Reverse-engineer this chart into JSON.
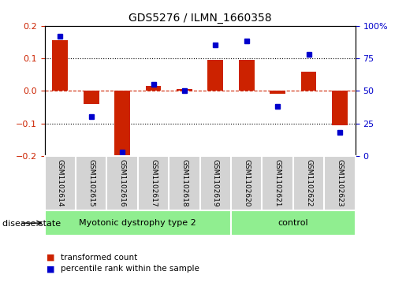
{
  "title": "GDS5276 / ILMN_1660358",
  "samples": [
    "GSM1102614",
    "GSM1102615",
    "GSM1102616",
    "GSM1102617",
    "GSM1102618",
    "GSM1102619",
    "GSM1102620",
    "GSM1102621",
    "GSM1102622",
    "GSM1102623"
  ],
  "transformed_count": [
    0.155,
    -0.04,
    -0.205,
    0.015,
    0.005,
    0.095,
    0.095,
    -0.01,
    0.058,
    -0.105
  ],
  "percentile_rank": [
    92,
    30,
    3,
    55,
    50,
    85,
    88,
    38,
    78,
    18
  ],
  "ylim_left": [
    -0.2,
    0.2
  ],
  "ylim_right": [
    0,
    100
  ],
  "yticks_left": [
    -0.2,
    -0.1,
    0.0,
    0.1,
    0.2
  ],
  "yticks_right": [
    0,
    25,
    50,
    75,
    100
  ],
  "disease_groups": [
    {
      "label": "Myotonic dystrophy type 2",
      "start": 0,
      "end": 6,
      "color": "#90EE90"
    },
    {
      "label": "control",
      "start": 6,
      "end": 10,
      "color": "#90EE90"
    }
  ],
  "bar_color": "#CC2200",
  "dot_color": "#0000CC",
  "zero_line_color": "#CC2200",
  "grid_color": "#000000",
  "bg_color": "#ffffff",
  "sample_box_color": "#D3D3D3",
  "legend_items": [
    {
      "color": "#CC2200",
      "label": "transformed count"
    },
    {
      "color": "#0000CC",
      "label": "percentile rank within the sample"
    }
  ],
  "disease_state_label": "disease state"
}
